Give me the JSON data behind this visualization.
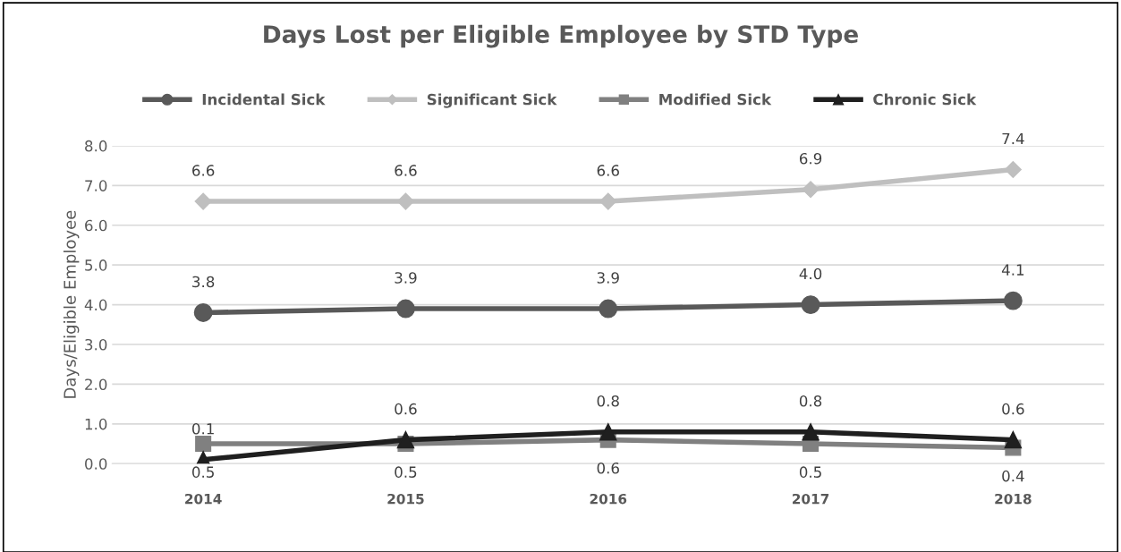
{
  "chart_data": {
    "type": "line",
    "title": "Days Lost per Eligible Employee by STD Type",
    "ylabel": "Days/Eligible Employee",
    "categories": [
      "2014",
      "2015",
      "2016",
      "2017",
      "2018"
    ],
    "series": [
      {
        "name": "Incidental Sick",
        "color": "#595959",
        "marker": "circle",
        "values": [
          3.8,
          3.9,
          3.9,
          4.0,
          4.1
        ],
        "value_labels": [
          "3.8",
          "3.9",
          "3.9",
          "4.0",
          "4.1"
        ]
      },
      {
        "name": "Significant Sick",
        "color": "#bfbfbf",
        "marker": "diamond",
        "values": [
          6.6,
          6.6,
          6.6,
          6.9,
          7.4
        ],
        "value_labels": [
          "6.6",
          "6.6",
          "6.6",
          "6.9",
          "7.4"
        ]
      },
      {
        "name": "Modified Sick",
        "color": "#808080",
        "marker": "square",
        "values": [
          0.5,
          0.5,
          0.6,
          0.5,
          0.4
        ],
        "value_labels": [
          "0.5",
          "0.5",
          "0.6",
          "0.5",
          "0.4"
        ]
      },
      {
        "name": "Chronic Sick",
        "color": "#1f1f1f",
        "marker": "triangle",
        "values": [
          0.1,
          0.6,
          0.8,
          0.8,
          0.6
        ],
        "value_labels": [
          "0.1",
          "0.6",
          "0.8",
          "0.8",
          "0.6"
        ]
      }
    ],
    "ylim": [
      0,
      8
    ],
    "yticks": [
      {
        "value": 0,
        "label": "0.0"
      },
      {
        "value": 1,
        "label": "1.0"
      },
      {
        "value": 2,
        "label": "2.0"
      },
      {
        "value": 3,
        "label": "3.0"
      },
      {
        "value": 4,
        "label": "4.0"
      },
      {
        "value": 5,
        "label": "5.0"
      },
      {
        "value": 6,
        "label": "6.0"
      },
      {
        "value": 7,
        "label": "7.0"
      },
      {
        "value": 8,
        "label": "8.0"
      }
    ],
    "grid": "y",
    "legend": "top",
    "line_style": "solid"
  }
}
